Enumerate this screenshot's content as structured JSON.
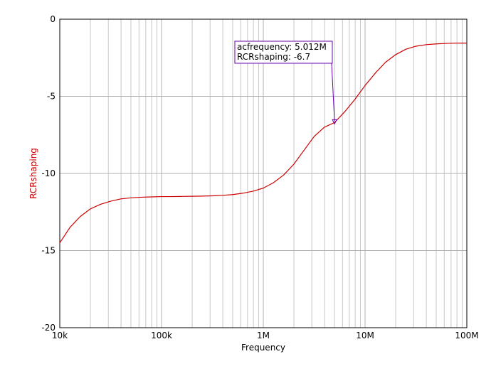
{
  "chart_data": {
    "type": "line",
    "xlabel": "Frequency",
    "ylabel": "RCRshaping",
    "x_scale": "log",
    "xlim": [
      10000,
      100000000
    ],
    "ylim": [
      -20,
      0
    ],
    "grid": true,
    "x_ticks": [
      {
        "value": 10000,
        "label": "10k"
      },
      {
        "value": 100000,
        "label": "100k"
      },
      {
        "value": 1000000,
        "label": "1M"
      },
      {
        "value": 10000000,
        "label": "10M"
      },
      {
        "value": 100000000,
        "label": "100M"
      }
    ],
    "y_ticks": [
      {
        "value": 0,
        "label": "0"
      },
      {
        "value": -5,
        "label": "-5"
      },
      {
        "value": -10,
        "label": "-10"
      },
      {
        "value": -15,
        "label": "-15"
      },
      {
        "value": -20,
        "label": "-20"
      }
    ],
    "series": [
      {
        "color": "#cc0000",
        "x": [
          10000,
          12589,
          15849,
          19953,
          25119,
          31623,
          39811,
          50119,
          63096,
          79433,
          100000,
          125893,
          158489,
          199526,
          251189,
          316228,
          398107,
          501187,
          630957,
          794328,
          1000000,
          1258925,
          1584893,
          1995262,
          2511886,
          3162278,
          3981072,
          5011872,
          6309573,
          7943282,
          10000000,
          12589254,
          15848932,
          19952623,
          25118864,
          31622777,
          39810717,
          50118723,
          63095734,
          79432823,
          100000000
        ],
        "y": [
          -14.5,
          -13.5,
          -12.8,
          -12.3,
          -12.0,
          -11.8,
          -11.65,
          -11.58,
          -11.54,
          -11.52,
          -11.5,
          -11.5,
          -11.49,
          -11.48,
          -11.47,
          -11.45,
          -11.42,
          -11.37,
          -11.28,
          -11.15,
          -10.95,
          -10.6,
          -10.1,
          -9.4,
          -8.5,
          -7.6,
          -7.0,
          -6.7,
          -6.0,
          -5.2,
          -4.3,
          -3.5,
          -2.8,
          -2.3,
          -1.95,
          -1.75,
          -1.65,
          -1.6,
          -1.57,
          -1.55,
          -1.55
        ]
      }
    ],
    "annotation": {
      "x": 5011872,
      "y": -6.7,
      "lines": [
        "acfrequency: 5.012M",
        "RCRshaping: -6.7"
      ],
      "color": "#6600aa"
    }
  }
}
